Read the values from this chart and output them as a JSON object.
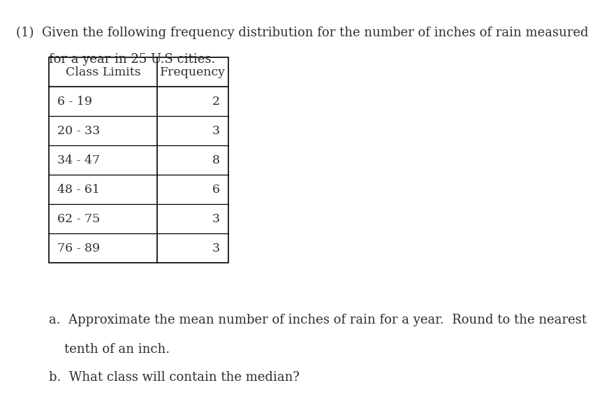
{
  "title_line1": "(1)  Given the following frequency distribution for the number of inches of rain measured",
  "title_line2": "for a year in 25 U.S cities.",
  "col_headers": [
    "Class Limits",
    "Frequency"
  ],
  "rows": [
    [
      "6 - 19",
      "2"
    ],
    [
      "20 - 33",
      "3"
    ],
    [
      "34 - 47",
      "8"
    ],
    [
      "48 - 61",
      "6"
    ],
    [
      "62 - 75",
      "3"
    ],
    [
      "76 - 89",
      "3"
    ]
  ],
  "question_a": "a.  Approximate the mean number of inches of rain for a year.  Round to the nearest",
  "question_a2": "tenth of an inch.",
  "question_b": "b.  What class will contain the median?",
  "bg_color": "#ffffff",
  "text_color": "#2e2e2e",
  "font_size_title": 13.0,
  "font_size_table": 12.5,
  "font_size_questions": 13.0
}
